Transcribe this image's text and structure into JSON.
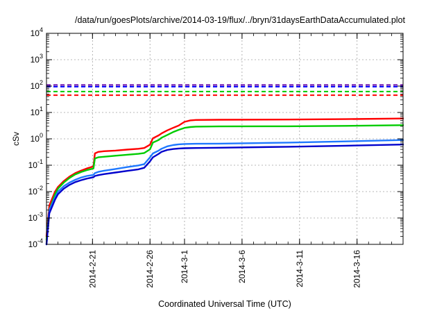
{
  "chart_data": {
    "type": "line",
    "title": "/data/run/goesPlots/archive/2014-03-19/flux/../bryn/31daysEarthDataAccumulated.plot",
    "xlabel": "Coordinated Universal Time (UTC)",
    "ylabel": "cSv",
    "y_scale": "log",
    "ylim": [
      0.0001,
      10000
    ],
    "x_start": "2014-02-17",
    "x_end": "2014-03-20",
    "grid": true,
    "y_ticks": [
      {
        "value": 0.0001,
        "mantissa": "10",
        "exp": "-4"
      },
      {
        "value": 0.001,
        "mantissa": "10",
        "exp": "-3"
      },
      {
        "value": 0.01,
        "mantissa": "10",
        "exp": "-2"
      },
      {
        "value": 0.1,
        "mantissa": "10",
        "exp": "-1"
      },
      {
        "value": 1,
        "mantissa": "10",
        "exp": "0"
      },
      {
        "value": 10,
        "mantissa": "10",
        "exp": "1"
      },
      {
        "value": 100,
        "mantissa": "10",
        "exp": "2"
      },
      {
        "value": 1000,
        "mantissa": "10",
        "exp": "3"
      },
      {
        "value": 10000,
        "mantissa": "10",
        "exp": "4"
      }
    ],
    "x_ticks": [
      {
        "date": "2014-02-21",
        "label": "2014-2-21"
      },
      {
        "date": "2014-02-26",
        "label": "2014-2-26"
      },
      {
        "date": "2014-03-01",
        "label": "2014-3-1"
      },
      {
        "date": "2014-03-06",
        "label": "2014-3-6"
      },
      {
        "date": "2014-03-11",
        "label": "2014-3-11"
      },
      {
        "date": "2014-03-16",
        "label": "2014-3-16"
      }
    ],
    "reference_lines": [
      {
        "color": "#6a0dad",
        "value": 110
      },
      {
        "color": "#0000ff",
        "value": 95
      },
      {
        "color": "#00cc00",
        "value": 62
      },
      {
        "color": "#ff0000",
        "value": 45
      }
    ],
    "series": [
      {
        "color": "#ff0000",
        "points": [
          [
            "2014-02-17",
            0.0002
          ],
          [
            "2014-02-17T06:00",
            0.003
          ],
          [
            "2014-02-17T18:00",
            0.01
          ],
          [
            "2014-02-18",
            0.015
          ],
          [
            "2014-02-18T12:00",
            0.025
          ],
          [
            "2014-02-19",
            0.037
          ],
          [
            "2014-02-19T12:00",
            0.05
          ],
          [
            "2014-02-20",
            0.062
          ],
          [
            "2014-02-20T12:00",
            0.075
          ],
          [
            "2014-02-21T02:00",
            0.09
          ],
          [
            "2014-02-21T05:00",
            0.28
          ],
          [
            "2014-02-21T12:00",
            0.32
          ],
          [
            "2014-02-22",
            0.34
          ],
          [
            "2014-02-23",
            0.36
          ],
          [
            "2014-02-24",
            0.39
          ],
          [
            "2014-02-25",
            0.42
          ],
          [
            "2014-02-25T12:00",
            0.45
          ],
          [
            "2014-02-26",
            0.6
          ],
          [
            "2014-02-26T06:00",
            1.05
          ],
          [
            "2014-02-26T18:00",
            1.35
          ],
          [
            "2014-02-27",
            1.6
          ],
          [
            "2014-02-27T12:00",
            2.1
          ],
          [
            "2014-02-28",
            2.6
          ],
          [
            "2014-02-28T12:00",
            3.2
          ],
          [
            "2014-03-01",
            4.4
          ],
          [
            "2014-03-01T12:00",
            5.0
          ],
          [
            "2014-03-02",
            5.2
          ],
          [
            "2014-03-04",
            5.3
          ],
          [
            "2014-03-10",
            5.4
          ],
          [
            "2014-03-15",
            5.6
          ],
          [
            "2014-03-20",
            5.9
          ]
        ]
      },
      {
        "color": "#00cc00",
        "points": [
          [
            "2014-02-17",
            0.00015
          ],
          [
            "2014-02-17T06:00",
            0.002
          ],
          [
            "2014-02-17T18:00",
            0.008
          ],
          [
            "2014-02-18",
            0.013
          ],
          [
            "2014-02-18T12:00",
            0.022
          ],
          [
            "2014-02-19",
            0.033
          ],
          [
            "2014-02-19T12:00",
            0.045
          ],
          [
            "2014-02-20",
            0.055
          ],
          [
            "2014-02-20T12:00",
            0.065
          ],
          [
            "2014-02-21T02:00",
            0.075
          ],
          [
            "2014-02-21T05:00",
            0.18
          ],
          [
            "2014-02-21T12:00",
            0.2
          ],
          [
            "2014-02-22",
            0.21
          ],
          [
            "2014-02-23",
            0.23
          ],
          [
            "2014-02-24",
            0.25
          ],
          [
            "2014-02-25",
            0.27
          ],
          [
            "2014-02-25T12:00",
            0.29
          ],
          [
            "2014-02-26",
            0.4
          ],
          [
            "2014-02-26T06:00",
            0.72
          ],
          [
            "2014-02-26T18:00",
            0.9
          ],
          [
            "2014-02-27",
            1.1
          ],
          [
            "2014-02-27T12:00",
            1.4
          ],
          [
            "2014-02-28",
            1.8
          ],
          [
            "2014-02-28T12:00",
            2.2
          ],
          [
            "2014-03-01",
            2.6
          ],
          [
            "2014-03-01T12:00",
            2.8
          ],
          [
            "2014-03-02",
            2.9
          ],
          [
            "2014-03-04",
            2.95
          ],
          [
            "2014-03-10",
            3.0
          ],
          [
            "2014-03-15",
            3.1
          ],
          [
            "2014-03-20",
            3.3
          ]
        ]
      },
      {
        "color": "#1e78ff",
        "points": [
          [
            "2014-02-17",
            0.0001
          ],
          [
            "2014-02-17T06:00",
            0.002
          ],
          [
            "2014-02-17T18:00",
            0.006
          ],
          [
            "2014-02-18",
            0.01
          ],
          [
            "2014-02-18T12:00",
            0.016
          ],
          [
            "2014-02-19",
            0.022
          ],
          [
            "2014-02-19T12:00",
            0.028
          ],
          [
            "2014-02-20",
            0.034
          ],
          [
            "2014-02-20T12:00",
            0.039
          ],
          [
            "2014-02-21T02:00",
            0.043
          ],
          [
            "2014-02-21T05:00",
            0.05
          ],
          [
            "2014-02-21T12:00",
            0.056
          ],
          [
            "2014-02-22",
            0.062
          ],
          [
            "2014-02-23",
            0.072
          ],
          [
            "2014-02-24",
            0.085
          ],
          [
            "2014-02-25",
            0.098
          ],
          [
            "2014-02-25T12:00",
            0.11
          ],
          [
            "2014-02-26",
            0.2
          ],
          [
            "2014-02-26T06:00",
            0.28
          ],
          [
            "2014-02-26T18:00",
            0.36
          ],
          [
            "2014-02-27",
            0.42
          ],
          [
            "2014-02-27T12:00",
            0.52
          ],
          [
            "2014-02-28",
            0.58
          ],
          [
            "2014-02-28T12:00",
            0.62
          ],
          [
            "2014-03-01",
            0.64
          ],
          [
            "2014-03-02",
            0.65
          ],
          [
            "2014-03-04",
            0.66
          ],
          [
            "2014-03-10",
            0.72
          ],
          [
            "2014-03-15",
            0.8
          ],
          [
            "2014-03-20",
            0.9
          ]
        ]
      },
      {
        "color": "#0000cc",
        "points": [
          [
            "2014-02-17",
            0.0001
          ],
          [
            "2014-02-17T06:00",
            0.0015
          ],
          [
            "2014-02-17T18:00",
            0.005
          ],
          [
            "2014-02-18",
            0.008
          ],
          [
            "2014-02-18T12:00",
            0.013
          ],
          [
            "2014-02-19",
            0.018
          ],
          [
            "2014-02-19T12:00",
            0.023
          ],
          [
            "2014-02-20",
            0.027
          ],
          [
            "2014-02-20T12:00",
            0.031
          ],
          [
            "2014-02-21T02:00",
            0.035
          ],
          [
            "2014-02-21T05:00",
            0.039
          ],
          [
            "2014-02-21T12:00",
            0.042
          ],
          [
            "2014-02-22",
            0.046
          ],
          [
            "2014-02-23",
            0.053
          ],
          [
            "2014-02-24",
            0.061
          ],
          [
            "2014-02-25",
            0.07
          ],
          [
            "2014-02-25T12:00",
            0.08
          ],
          [
            "2014-02-26",
            0.14
          ],
          [
            "2014-02-26T06:00",
            0.2
          ],
          [
            "2014-02-26T18:00",
            0.27
          ],
          [
            "2014-02-27",
            0.32
          ],
          [
            "2014-02-27T12:00",
            0.38
          ],
          [
            "2014-02-28",
            0.41
          ],
          [
            "2014-02-28T12:00",
            0.43
          ],
          [
            "2014-03-01",
            0.44
          ],
          [
            "2014-03-02",
            0.45
          ],
          [
            "2014-03-04",
            0.46
          ],
          [
            "2014-03-10",
            0.5
          ],
          [
            "2014-03-15",
            0.55
          ],
          [
            "2014-03-20",
            0.61
          ]
        ]
      }
    ]
  }
}
